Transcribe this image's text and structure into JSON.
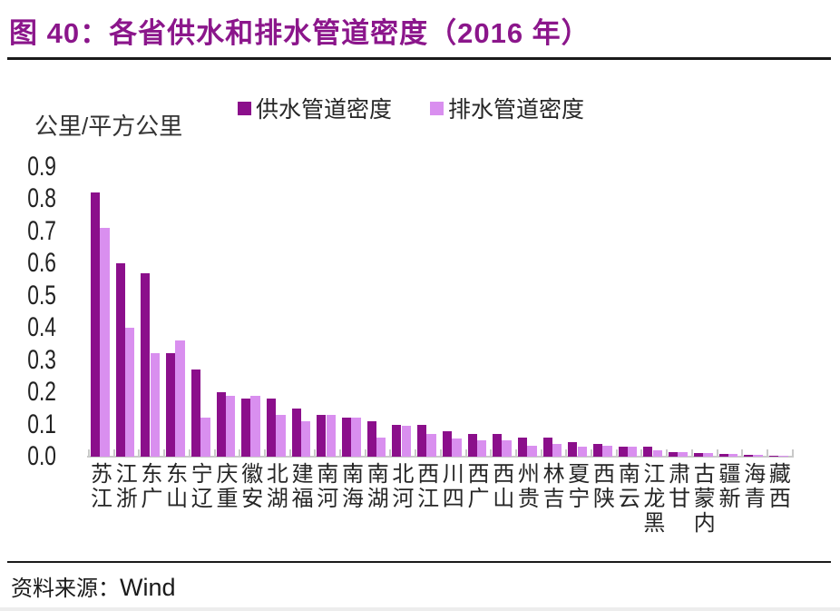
{
  "header": {
    "title": "图 40：各省供水和排水管道密度（2016 年）"
  },
  "source": {
    "prefix": "资料来源：",
    "name": "Wind"
  },
  "colors": {
    "title": "#8b168b",
    "supply_bar": "#8b0f8b",
    "drainage_bar": "#d98fef",
    "axis": "#c9c9c9",
    "text": "#262626",
    "rule": "#1a1a1a"
  },
  "chart_data": {
    "type": "bar",
    "title": "各省供水和排水管道密度（2016 年）",
    "unit_label": "公里/平方公里",
    "xlabel": "",
    "ylabel": "公里/平方公里",
    "ylim": [
      0,
      0.9
    ],
    "y_tick_labels": [
      "0.0",
      "0.1",
      "0.2",
      "0.3",
      "0.4",
      "0.5",
      "0.6",
      "0.7",
      "0.8",
      "0.9"
    ],
    "grid": false,
    "legend_position": "top",
    "categories": [
      "江苏",
      "浙江",
      "广东",
      "山东",
      "辽宁",
      "重庆",
      "安徽",
      "湖北",
      "福建",
      "河南",
      "海南",
      "湖南",
      "河北",
      "江西",
      "四川",
      "广西",
      "山西",
      "贵州",
      "吉林",
      "宁夏",
      "陕西",
      "云南",
      "黑龙江",
      "甘肃",
      "内蒙古",
      "新疆",
      "青海",
      "西藏"
    ],
    "series": [
      {
        "name": "供水管道密度",
        "color": "#8b0f8b",
        "values": [
          0.82,
          0.6,
          0.57,
          0.32,
          0.27,
          0.2,
          0.18,
          0.18,
          0.15,
          0.13,
          0.12,
          0.11,
          0.1,
          0.1,
          0.08,
          0.07,
          0.07,
          0.06,
          0.06,
          0.045,
          0.04,
          0.03,
          0.03,
          0.013,
          0.01,
          0.008,
          0.005,
          0.002
        ]
      },
      {
        "name": "排水管道密度",
        "color": "#d98fef",
        "values": [
          0.71,
          0.4,
          0.32,
          0.36,
          0.12,
          0.19,
          0.19,
          0.13,
          0.11,
          0.13,
          0.12,
          0.06,
          0.095,
          0.07,
          0.055,
          0.05,
          0.05,
          0.035,
          0.04,
          0.03,
          0.035,
          0.03,
          0.02,
          0.013,
          0.01,
          0.008,
          0.006,
          0.003
        ]
      }
    ]
  }
}
